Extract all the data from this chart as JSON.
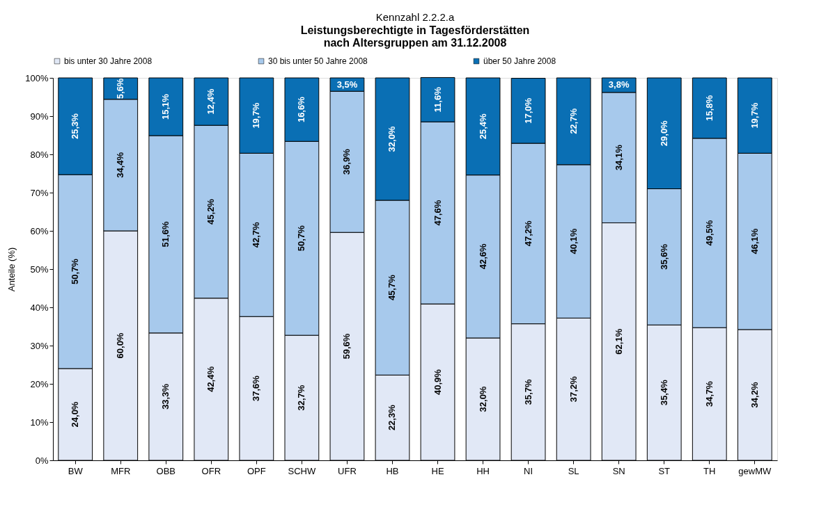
{
  "chart_data": {
    "type": "bar",
    "stacked": true,
    "title": "Leistungsberechtigte in Tagesförderstätten\nnach Altersgruppen am 31.12.2008",
    "subtitle": "Kennzahl 2.2.2.a",
    "ylabel": "Anteile (%)",
    "categories": [
      "BW",
      "MFR",
      "OBB",
      "OFR",
      "OPF",
      "SCHW",
      "UFR",
      "HB",
      "HE",
      "HH",
      "NI",
      "SL",
      "SN",
      "ST",
      "TH",
      "gewMW"
    ],
    "series": [
      {
        "name": "bis unter 30 Jahre 2008",
        "color": "#e1e8f6",
        "values": [
          24.0,
          60.0,
          33.3,
          42.4,
          37.6,
          32.7,
          59.6,
          22.3,
          40.9,
          32.0,
          35.7,
          37.2,
          62.1,
          35.4,
          34.7,
          34.2
        ],
        "value_labels": [
          "24,0%",
          "60,0%",
          "33,3%",
          "42,4%",
          "37,6%",
          "32,7%",
          "59,6%",
          "22,3%",
          "40,9%",
          "32,0%",
          "35,7%",
          "37,2%",
          "62,1%",
          "35,4%",
          "34,7%",
          "34,2%"
        ]
      },
      {
        "name": "30 bis unter 50 Jahre 2008",
        "color": "#a7c9ec",
        "values": [
          50.7,
          34.4,
          51.6,
          45.2,
          42.7,
          50.7,
          36.9,
          45.7,
          47.6,
          42.6,
          47.2,
          40.1,
          34.1,
          35.6,
          49.5,
          46.1
        ],
        "value_labels": [
          "50,7%",
          "34,4%",
          "51,6%",
          "45,2%",
          "42,7%",
          "50,7%",
          "36,9%",
          "45,7%",
          "47,6%",
          "42,6%",
          "47,2%",
          "40,1%",
          "34,1%",
          "35,6%",
          "49,5%",
          "46,1%"
        ]
      },
      {
        "name": "über 50 Jahre 2008",
        "color": "#0a6fb4",
        "values": [
          25.3,
          5.6,
          15.1,
          12.4,
          19.7,
          16.6,
          3.5,
          32.0,
          11.6,
          25.4,
          17.0,
          22.7,
          3.8,
          29.0,
          15.8,
          19.7
        ],
        "value_labels": [
          "25,3%",
          "5,6%",
          "15,1%",
          "12,4%",
          "19,7%",
          "16,6%",
          "3,5%",
          "32,0%",
          "11,6%",
          "25,4%",
          "17,0%",
          "22,7%",
          "3,8%",
          "29,0%",
          "15,8%",
          "19,7%"
        ]
      }
    ],
    "ylim": [
      0,
      100
    ],
    "yticks": [
      {
        "value": 0,
        "label": "0%"
      },
      {
        "value": 10,
        "label": "10%"
      },
      {
        "value": 20,
        "label": "20%"
      },
      {
        "value": 30,
        "label": "30%"
      },
      {
        "value": 40,
        "label": "40%"
      },
      {
        "value": 50,
        "label": "50%"
      },
      {
        "value": 60,
        "label": "60%"
      },
      {
        "value": 70,
        "label": "70%"
      },
      {
        "value": 80,
        "label": "80%"
      },
      {
        "value": 90,
        "label": "90%"
      },
      {
        "value": 100,
        "label": "100%"
      }
    ],
    "grid": false,
    "legend": "top"
  }
}
